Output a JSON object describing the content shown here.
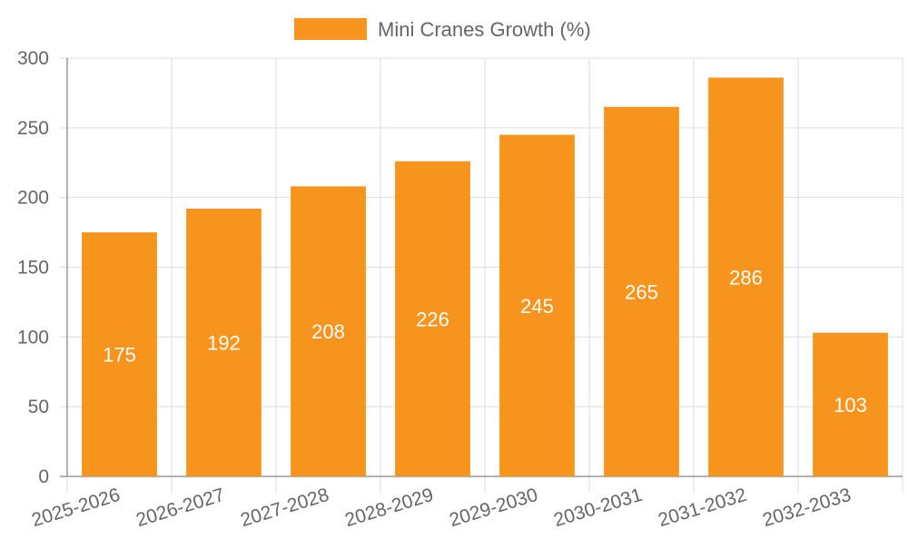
{
  "chart_data": {
    "type": "bar",
    "title": "",
    "xlabel": "",
    "ylabel": "",
    "categories": [
      "2025-2026",
      "2026-2027",
      "2027-2028",
      "2028-2029",
      "2029-2030",
      "2030-2031",
      "2031-2032",
      "2032-2033"
    ],
    "series": [
      {
        "name": "Mini Cranes Growth (%)",
        "values": [
          175,
          192,
          208,
          226,
          245,
          265,
          286,
          103
        ],
        "color": "#f7941d"
      }
    ],
    "ylim": [
      0,
      300
    ],
    "yticks": [
      "0",
      "50",
      "100",
      "150",
      "200",
      "250",
      "300"
    ],
    "grid": true,
    "legend_position": "top-center",
    "data_labels": [
      "175",
      "192",
      "208",
      "226",
      "245",
      "265",
      "286",
      "103"
    ]
  },
  "colors": {
    "grid": "#dddddd",
    "axis": "#999999",
    "tick_text": "#666666",
    "legend_text": "#666666",
    "label_text": "#ffffff"
  }
}
